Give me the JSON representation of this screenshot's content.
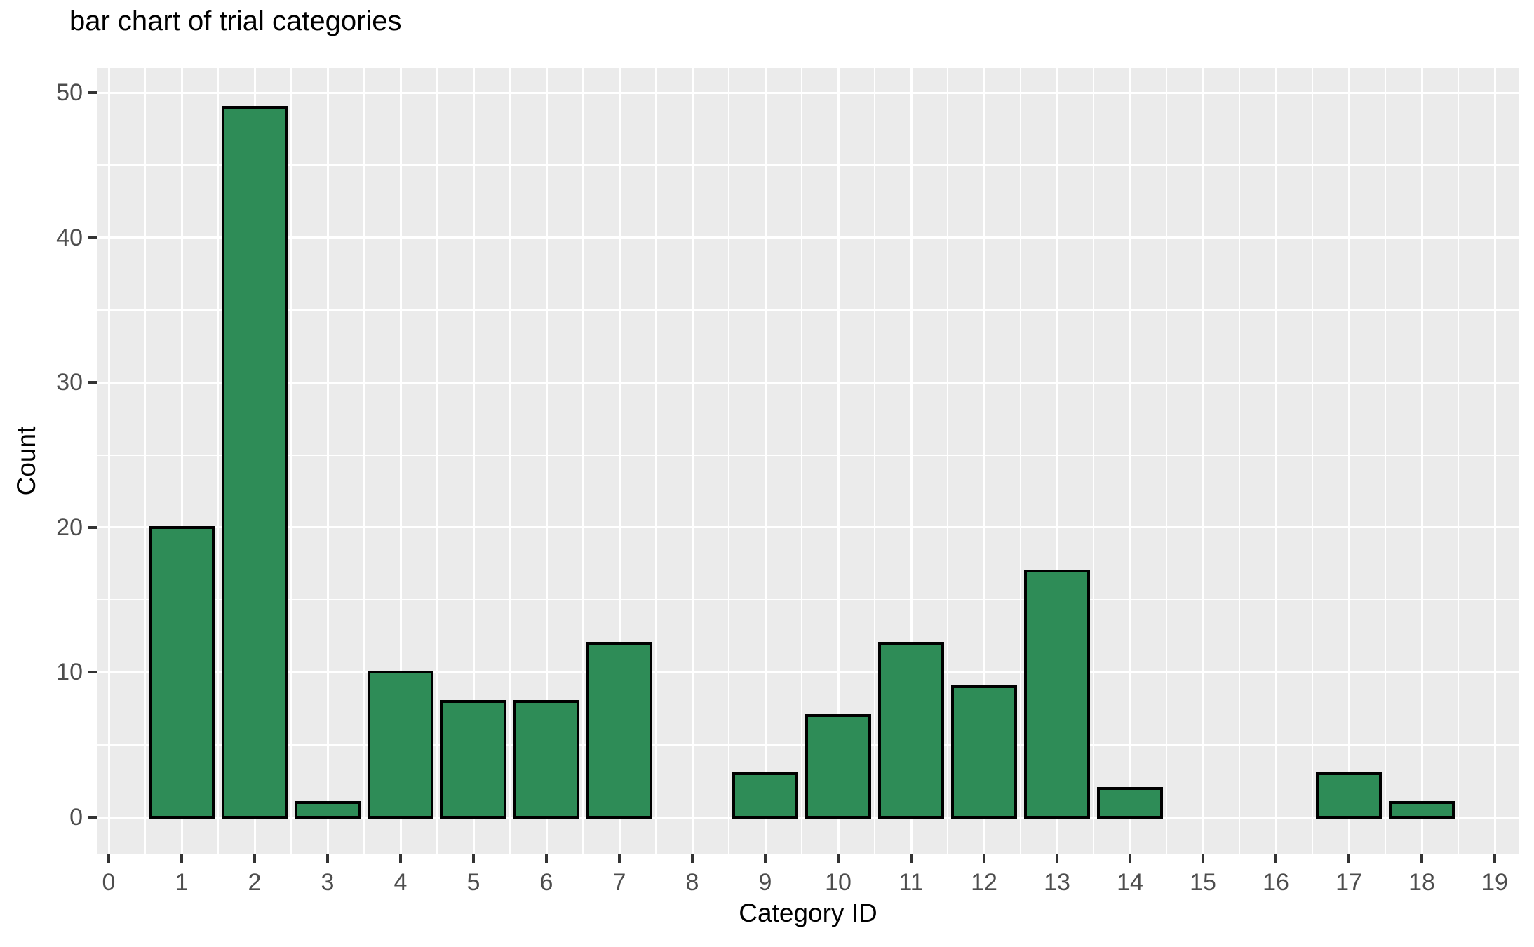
{
  "title": "bar chart of trial categories",
  "chart_data": {
    "type": "bar",
    "title": "bar chart of trial categories",
    "xlabel": "Category ID",
    "ylabel": "Count",
    "categories": [
      0,
      1,
      2,
      3,
      4,
      5,
      6,
      7,
      8,
      9,
      10,
      11,
      12,
      13,
      14,
      15,
      16,
      17,
      18,
      19
    ],
    "values": [
      0,
      20,
      49,
      1,
      10,
      8,
      8,
      12,
      0,
      3,
      7,
      12,
      9,
      17,
      2,
      0,
      0,
      3,
      1,
      0
    ],
    "x_tick_labels": [
      "0",
      "1",
      "2",
      "3",
      "4",
      "5",
      "6",
      "7",
      "8",
      "9",
      "10",
      "11",
      "12",
      "13",
      "14",
      "15",
      "16",
      "17",
      "18",
      "19"
    ],
    "y_tick_labels": [
      "0",
      "10",
      "20",
      "30",
      "40",
      "50"
    ],
    "y_ticks": [
      0,
      10,
      20,
      30,
      40,
      50
    ],
    "y_minor_ticks": [
      5,
      15,
      25,
      35,
      45
    ],
    "ylim": [
      -2.5,
      51.7
    ],
    "xlim": [
      -0.2,
      19.4
    ],
    "bar_width": 0.9,
    "grid": "major and minor, white on gray panel",
    "legend": "none"
  },
  "colors": {
    "bar_fill": "#2e8c57",
    "bar_stroke": "#000000",
    "panel_bg": "#ebebeb",
    "grid": "#ffffff",
    "tick_text": "#4d4d4d",
    "tick_mark": "#333333",
    "title_text": "#000000",
    "page_bg": "#ffffff"
  }
}
